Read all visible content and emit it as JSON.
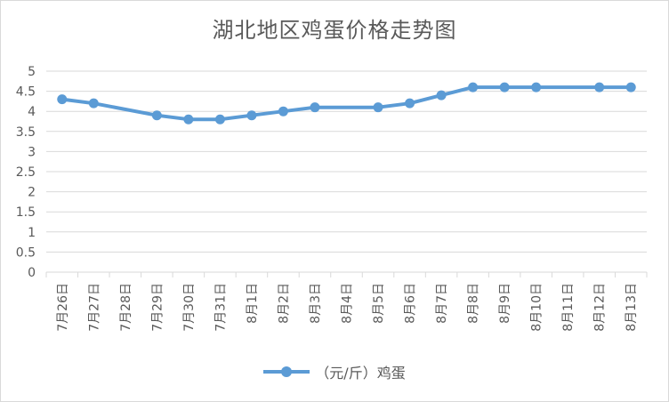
{
  "chart_data": {
    "type": "line",
    "title": "湖北地区鸡蛋价格走势图",
    "categories": [
      "7月26日",
      "7月27日",
      "7月28日",
      "7月29日",
      "7月30日",
      "7月31日",
      "8月1日",
      "8月2日",
      "8月3日",
      "8月4日",
      "8月5日",
      "8月6日",
      "8月7日",
      "8月8日",
      "8月9日",
      "8月10日",
      "8月11日",
      "8月12日",
      "8月13日"
    ],
    "series": [
      {
        "name": "（元/斤）鸡蛋",
        "values": [
          4.3,
          4.2,
          null,
          3.9,
          3.8,
          3.8,
          3.9,
          4.0,
          4.1,
          null,
          4.1,
          4.2,
          4.4,
          4.6,
          4.6,
          4.6,
          null,
          4.6,
          4.6
        ],
        "color": "#5b9bd5"
      }
    ],
    "yticks": [
      "0",
      "0.5",
      "1",
      "1.5",
      "2",
      "2.5",
      "3",
      "3.5",
      "4",
      "4.5",
      "5"
    ],
    "ylim": [
      0,
      5
    ],
    "grid": true,
    "legend_position": "bottom"
  }
}
